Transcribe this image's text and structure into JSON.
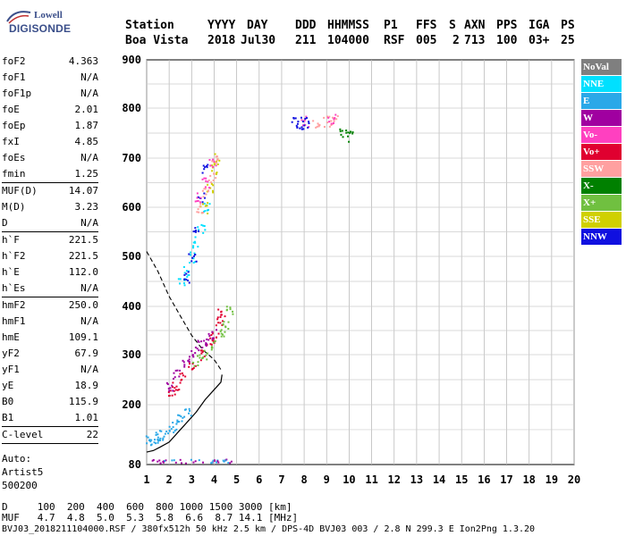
{
  "logo": {
    "top": "Lowell",
    "bottom": "DIGISONDE"
  },
  "header": {
    "labels": [
      "Station",
      "YYYY",
      "DAY",
      "DDD",
      "HHMMSS",
      "P1",
      "FFS",
      "S",
      "AXN",
      "PPS",
      "IGA",
      "PS"
    ],
    "values": [
      "Boa Vista",
      "2018",
      "Jul30",
      "211",
      "104000",
      "RSF",
      "005",
      "2",
      "713",
      "100",
      "03+",
      "25"
    ]
  },
  "params_group1": [
    {
      "label": "foF2",
      "value": "4.363"
    },
    {
      "label": "foF1",
      "value": "N/A"
    },
    {
      "label": "foF1p",
      "value": "N/A"
    },
    {
      "label": "foE",
      "value": "2.01"
    },
    {
      "label": "foEp",
      "value": "1.87"
    },
    {
      "label": "fxI",
      "value": "4.85"
    },
    {
      "label": "foEs",
      "value": "N/A"
    },
    {
      "label": "fmin",
      "value": "1.25"
    }
  ],
  "params_group2": [
    {
      "label": "MUF(D)",
      "value": "14.07"
    },
    {
      "label": "M(D)",
      "value": "3.23"
    },
    {
      "label": "D",
      "value": "N/A"
    }
  ],
  "params_group3": [
    {
      "label": "h`F",
      "value": "221.5"
    },
    {
      "label": "h`F2",
      "value": "221.5"
    },
    {
      "label": "h`E",
      "value": "112.0"
    },
    {
      "label": "h`Es",
      "value": "N/A"
    }
  ],
  "params_group4": [
    {
      "label": "hmF2",
      "value": "250.0"
    },
    {
      "label": "hmF1",
      "value": "N/A"
    },
    {
      "label": "hmE",
      "value": "109.1"
    },
    {
      "label": "yF2",
      "value": "67.9"
    },
    {
      "label": "yF1",
      "value": "N/A"
    },
    {
      "label": "yE",
      "value": "18.9"
    },
    {
      "label": "B0",
      "value": "115.9"
    },
    {
      "label": "B1",
      "value": "1.01"
    }
  ],
  "params_group5": [
    {
      "label": "C-level",
      "value": "22"
    }
  ],
  "autoscale": {
    "line1": "Auto:",
    "line2": "Artist5",
    "line3": "500200"
  },
  "legend": [
    {
      "label": "NoVal",
      "color": "#7f7f7f"
    },
    {
      "label": "NNE",
      "color": "#00e0ff"
    },
    {
      "label": "E",
      "color": "#2aa8e8"
    },
    {
      "label": "W",
      "color": "#a000a0"
    },
    {
      "label": "Vo-",
      "color": "#ff40c0"
    },
    {
      "label": "Vo+",
      "color": "#e00030"
    },
    {
      "label": "SSW",
      "color": "#ffa0a0"
    },
    {
      "label": "X-",
      "color": "#008000"
    },
    {
      "label": "X+",
      "color": "#70c040"
    },
    {
      "label": "SSE",
      "color": "#d0d000"
    },
    {
      "label": "NNW",
      "color": "#1010e0"
    }
  ],
  "chart_data": {
    "type": "scatter",
    "xlabel": "",
    "ylabel": "",
    "x_ticks": [
      1,
      2,
      3,
      4,
      5,
      6,
      7,
      8,
      9,
      10,
      11,
      12,
      13,
      14,
      15,
      16,
      17,
      18,
      19,
      20
    ],
    "y_ticks": [
      80,
      200,
      300,
      400,
      500,
      600,
      700,
      800,
      900
    ],
    "xlim": [
      1,
      20
    ],
    "ylim": [
      80,
      900
    ],
    "grid": true,
    "series": [
      {
        "name": "E",
        "x": [
          1.1,
          1.3,
          1.5,
          1.7,
          2.0,
          2.2,
          2.5,
          2.8
        ],
        "y": [
          130,
          132,
          135,
          140,
          150,
          160,
          170,
          185
        ]
      },
      {
        "name": "Vo+",
        "x": [
          2.1,
          2.3,
          2.6,
          3.0,
          3.4,
          3.8,
          4.0,
          4.2,
          4.3
        ],
        "y": [
          230,
          240,
          255,
          275,
          300,
          325,
          345,
          370,
          390
        ]
      },
      {
        "name": "W",
        "x": [
          2.0,
          2.3,
          2.7,
          3.0,
          3.3,
          3.6,
          3.9
        ],
        "y": [
          240,
          260,
          285,
          300,
          320,
          330,
          345
        ]
      },
      {
        "name": "X+",
        "x": [
          3.2,
          3.6,
          4.0,
          4.3,
          4.5,
          4.7
        ],
        "y": [
          290,
          300,
          320,
          345,
          365,
          395
        ]
      },
      {
        "name": "NNE",
        "x": [
          2.5,
          2.8,
          3.0,
          3.2,
          3.4,
          3.6
        ],
        "y": [
          450,
          470,
          500,
          530,
          560,
          600
        ]
      },
      {
        "name": "NNW",
        "x": [
          2.7,
          3.0,
          3.2,
          3.4,
          3.6
        ],
        "y": [
          460,
          500,
          560,
          620,
          680
        ]
      },
      {
        "name": "SSE",
        "x": [
          3.5,
          3.8,
          4.0,
          4.1
        ],
        "y": [
          600,
          640,
          680,
          700
        ]
      },
      {
        "name": "SSW",
        "x": [
          3.3,
          3.6,
          3.9,
          4.0,
          8.5,
          9.0,
          9.3
        ],
        "y": [
          600,
          630,
          660,
          700,
          770,
          775,
          780
        ]
      },
      {
        "name": "Vo-",
        "x": [
          3.3,
          3.6,
          3.9,
          8.0,
          9.2
        ],
        "y": [
          620,
          650,
          690,
          775,
          780
        ]
      },
      {
        "name": "X-",
        "x": [
          9.7,
          10.0
        ],
        "y": [
          750,
          745
        ]
      },
      {
        "name": "NNW-high",
        "x": [
          7.6,
          7.8,
          8.0
        ],
        "y": [
          772,
          770,
          773
        ]
      }
    ],
    "profile_dashed": {
      "x": [
        1.0,
        1.5,
        2.0,
        2.5,
        3.0,
        3.5,
        4.0,
        4.3
      ],
      "y": [
        510,
        470,
        420,
        380,
        340,
        310,
        290,
        270
      ]
    },
    "profile_solid": {
      "x": [
        1.0,
        1.3,
        1.6,
        2.0,
        2.4,
        2.8,
        3.2,
        3.6,
        4.0,
        4.3,
        4.35
      ],
      "y": [
        105,
        108,
        115,
        125,
        145,
        165,
        185,
        210,
        230,
        245,
        260
      ]
    }
  },
  "bottom": {
    "line1": "D     100  200  400  600  800 1000 1500 3000 [km]",
    "line2": "MUF   4.7  4.8  5.0  5.3  5.8  6.6  8.7 14.1 [MHz]",
    "line3": "BVJ03_2018211104000.RSF / 380fx512h 50 kHz 2.5 km / DPS-4D BVJ03 003 / 2.8 N 299.3 E Ion2Png 1.3.20"
  }
}
